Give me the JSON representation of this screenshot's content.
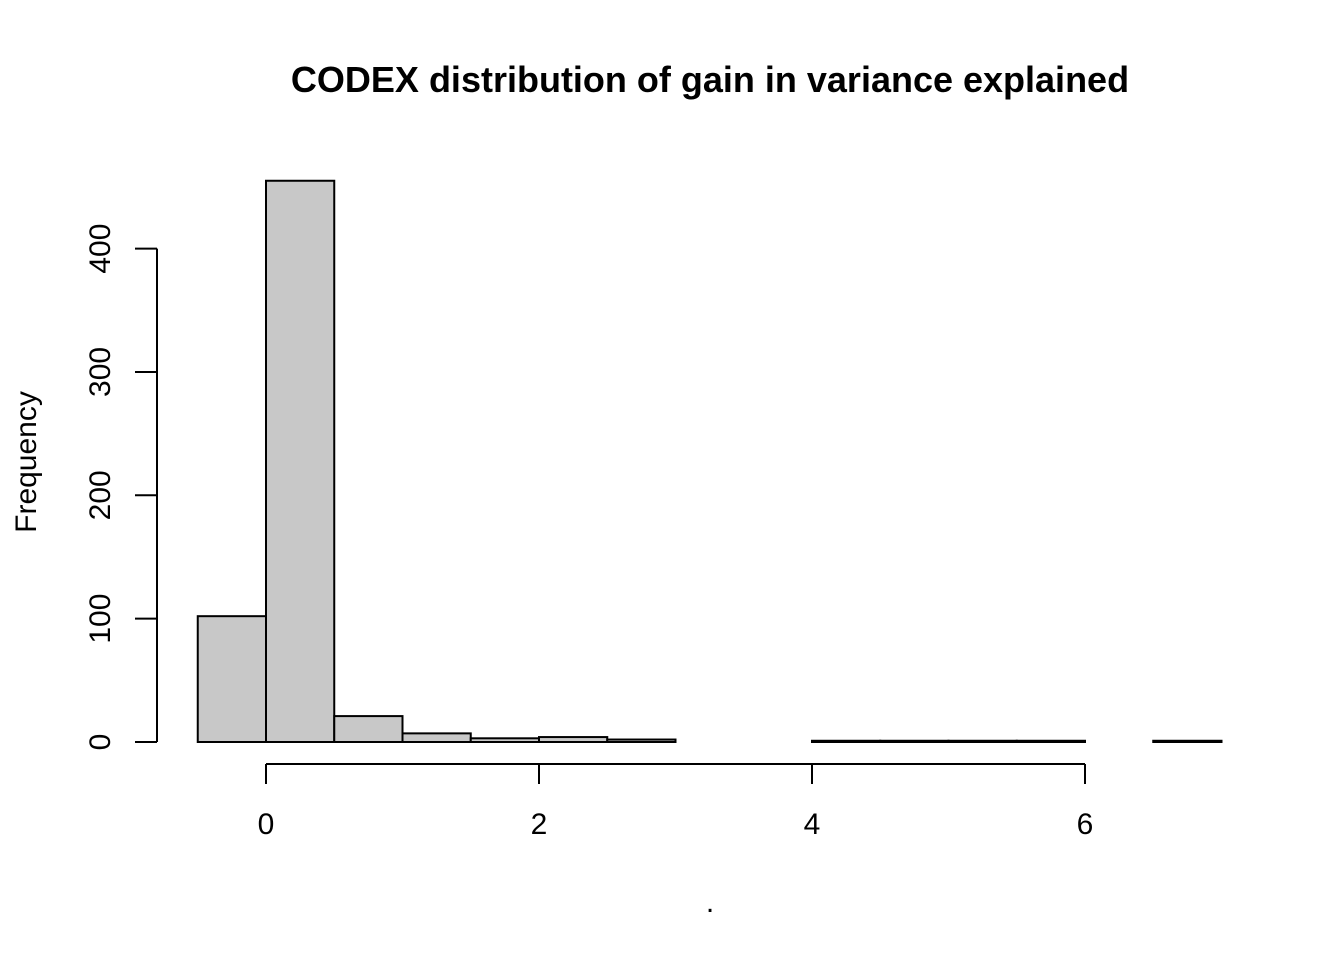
{
  "chart_data": {
    "type": "bar",
    "title": "CODEX distribution of gain in variance explained",
    "xlabel": ".",
    "ylabel": "Frequency",
    "bar_color": "#c8c8c8",
    "bin_edges": [
      -0.5,
      0,
      0.5,
      1,
      1.5,
      2,
      2.5,
      3,
      3.5,
      4,
      4.5,
      5,
      5.5,
      6,
      6.5,
      7
    ],
    "values": [
      102,
      455,
      21,
      7,
      3,
      4,
      2,
      0,
      0,
      1,
      1,
      1,
      1,
      0,
      1
    ],
    "xlim": [
      -0.5,
      7
    ],
    "ylim": [
      0,
      455
    ],
    "x_ticks": [
      0,
      2,
      4,
      6
    ],
    "x_tick_labels": [
      "0",
      "2",
      "4",
      "6"
    ],
    "y_ticks": [
      0,
      100,
      200,
      300,
      400
    ],
    "y_tick_labels": [
      "0",
      "100",
      "200",
      "300",
      "400"
    ],
    "grid": false
  }
}
